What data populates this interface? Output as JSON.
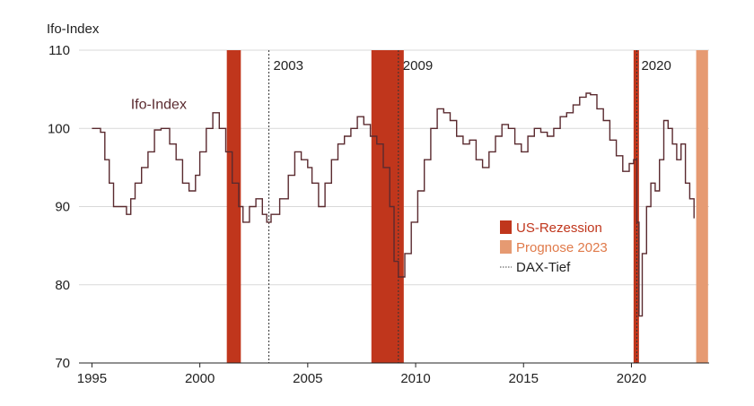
{
  "chart_data": {
    "type": "line",
    "title": "",
    "ylabel": "Ifo-Index",
    "xlabel": "",
    "xlim": [
      1994.4,
      2023.6
    ],
    "ylim": [
      70,
      110
    ],
    "x_ticks": [
      1995,
      2000,
      2005,
      2010,
      2015,
      2020
    ],
    "x_tick_labels": [
      "1995",
      "2000",
      "2005",
      "2010",
      "2015",
      "2020"
    ],
    "y_ticks": [
      70,
      80,
      90,
      100,
      110
    ],
    "y_tick_labels": [
      "70",
      "80",
      "90",
      "100",
      "110"
    ],
    "grid": "horizontal",
    "series": [
      {
        "name": "Ifo-Index",
        "color": "#5a2a2f",
        "x": [
          1995.0,
          1995.4,
          1995.6,
          1995.8,
          1996.0,
          1996.3,
          1996.6,
          1996.8,
          1997.0,
          1997.3,
          1997.6,
          1997.9,
          1998.2,
          1998.6,
          1998.9,
          1999.2,
          1999.5,
          1999.8,
          2000.0,
          2000.3,
          2000.6,
          2000.9,
          2001.2,
          2001.5,
          2001.8,
          2002.0,
          2002.3,
          2002.6,
          2002.9,
          2003.1,
          2003.3,
          2003.7,
          2004.1,
          2004.4,
          2004.7,
          2005.0,
          2005.2,
          2005.5,
          2005.8,
          2006.1,
          2006.4,
          2006.7,
          2007.0,
          2007.3,
          2007.6,
          2007.9,
          2008.2,
          2008.5,
          2008.8,
          2009.0,
          2009.2,
          2009.5,
          2009.8,
          2010.1,
          2010.4,
          2010.7,
          2011.0,
          2011.3,
          2011.6,
          2011.9,
          2012.2,
          2012.5,
          2012.8,
          2013.1,
          2013.4,
          2013.7,
          2014.0,
          2014.3,
          2014.6,
          2014.9,
          2015.2,
          2015.5,
          2015.8,
          2016.1,
          2016.4,
          2016.7,
          2017.0,
          2017.3,
          2017.6,
          2017.9,
          2018.1,
          2018.4,
          2018.7,
          2019.0,
          2019.3,
          2019.6,
          2019.9,
          2020.1,
          2020.25,
          2020.35,
          2020.5,
          2020.7,
          2020.9,
          2021.1,
          2021.3,
          2021.5,
          2021.7,
          2021.9,
          2022.1,
          2022.3,
          2022.5,
          2022.7,
          2022.9
        ],
        "values": [
          100,
          99.5,
          96,
          93,
          90,
          90,
          89,
          91,
          93,
          95,
          97,
          99.8,
          100,
          98,
          96,
          93,
          92,
          94,
          97,
          100,
          102,
          100,
          97,
          93,
          90,
          88,
          90,
          91,
          89,
          88,
          89,
          91,
          94,
          97,
          96,
          95,
          93,
          90,
          93,
          96,
          98,
          99,
          100,
          101.5,
          100.5,
          99,
          98,
          95,
          90,
          83,
          81,
          84,
          88,
          92,
          96,
          100,
          102.5,
          102,
          101,
          99,
          98,
          98.5,
          96,
          95,
          97,
          99,
          100.5,
          100,
          98,
          97,
          99,
          100,
          99.5,
          99,
          100,
          101.5,
          102,
          103,
          104,
          104.5,
          104.3,
          102.5,
          101,
          98.5,
          96.5,
          94.5,
          95.5,
          96,
          88,
          76,
          84,
          90,
          93,
          92,
          96,
          101,
          100,
          98,
          96,
          98,
          93,
          91,
          88.5
        ]
      }
    ],
    "rezession_periods": [
      [
        2001.25,
        2001.9
      ],
      [
        2007.95,
        2009.45
      ],
      [
        2020.1,
        2020.35
      ]
    ],
    "prognose_period": [
      2023.0,
      2023.55
    ],
    "dax_tief": [
      2003.2,
      2009.2,
      2020.25
    ],
    "event_labels": [
      {
        "text": "2003",
        "x": 2003.2
      },
      {
        "text": "2009",
        "x": 2009.2
      },
      {
        "text": "2020",
        "x": 2020.25
      }
    ],
    "series_label": {
      "text": "Ifo-Index",
      "x": 1996.8,
      "y": 102.5
    },
    "legend": {
      "placement": "right",
      "items": [
        {
          "label": "US-Rezession",
          "type": "box",
          "color": "#c0361c",
          "text_color": "#c0361c"
        },
        {
          "label": "Prognose 2023",
          "type": "box",
          "color": "#e69a72",
          "text_color": "#e07a4a"
        },
        {
          "label": "DAX-Tief",
          "type": "dotted",
          "color": "#444444",
          "text_color": "#222222"
        }
      ]
    }
  }
}
